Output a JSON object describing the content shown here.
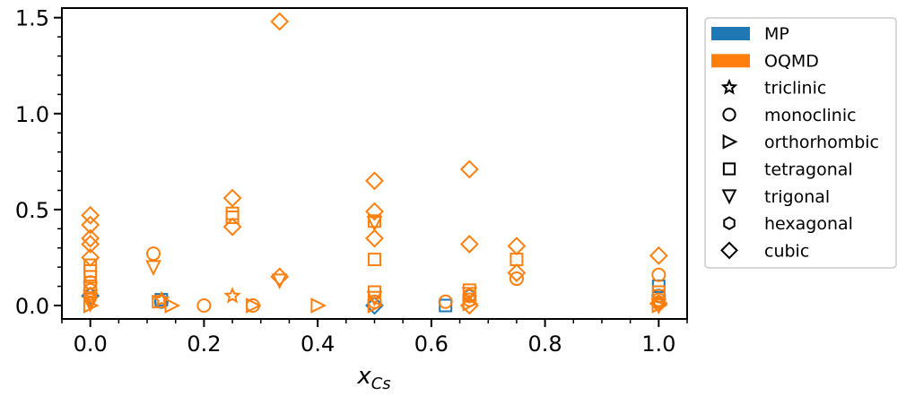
{
  "chart_data": {
    "type": "scatter",
    "title": "",
    "xlabel_main": "x",
    "xlabel_sub": "Cs",
    "ylabel": "",
    "xlim": [
      -0.05,
      1.05
    ],
    "ylim": [
      -0.07,
      1.55
    ],
    "xticks": [
      0.0,
      0.2,
      0.4,
      0.6,
      0.8,
      1.0
    ],
    "xtick_labels": [
      "0.0",
      "0.2",
      "0.4",
      "0.6",
      "0.8",
      "1.0"
    ],
    "yticks": [
      0.0,
      0.5,
      1.0,
      1.5
    ],
    "ytick_labels": [
      "0.0",
      "0.5",
      "1.0",
      "1.5"
    ],
    "grid": false,
    "legend_position": "outside-right",
    "sources": [
      {
        "name": "MP",
        "color": "#1f77b4"
      },
      {
        "name": "OQMD",
        "color": "#ff7f0e"
      }
    ],
    "crystal_systems": [
      {
        "name": "triclinic",
        "marker": "star"
      },
      {
        "name": "monoclinic",
        "marker": "circle"
      },
      {
        "name": "orthorhombic",
        "marker": "triangle-right"
      },
      {
        "name": "tetragonal",
        "marker": "square"
      },
      {
        "name": "trigonal",
        "marker": "triangle-down"
      },
      {
        "name": "hexagonal",
        "marker": "hexagon"
      },
      {
        "name": "cubic",
        "marker": "diamond"
      }
    ],
    "points": [
      {
        "source": "MP",
        "system": "cubic",
        "x": 0.0,
        "y": 0.05
      },
      {
        "source": "MP",
        "system": "square",
        "x": 0.125,
        "y": 0.03
      },
      {
        "source": "MP",
        "system": "monoclinic",
        "x": 0.125,
        "y": 0.02
      },
      {
        "source": "MP",
        "system": "square",
        "x": 0.625,
        "y": 0.0
      },
      {
        "source": "MP",
        "system": "cubic",
        "x": 0.5,
        "y": 0.0
      },
      {
        "source": "MP",
        "system": "square",
        "x": 1.0,
        "y": 0.1
      },
      {
        "source": "MP",
        "system": "monoclinic",
        "x": 1.0,
        "y": 0.05
      },
      {
        "source": "MP",
        "system": "hexagonal",
        "x": 0.667,
        "y": 0.05
      },
      {
        "source": "OQMD",
        "system": "cubic",
        "x": 0.0,
        "y": 0.47
      },
      {
        "source": "OQMD",
        "system": "cubic",
        "x": 0.0,
        "y": 0.42
      },
      {
        "source": "OQMD",
        "system": "cubic",
        "x": 0.0,
        "y": 0.35
      },
      {
        "source": "OQMD",
        "system": "cubic",
        "x": 0.0,
        "y": 0.32
      },
      {
        "source": "OQMD",
        "system": "cubic",
        "x": 0.0,
        "y": 0.25
      },
      {
        "source": "OQMD",
        "system": "square",
        "x": 0.0,
        "y": 0.21
      },
      {
        "source": "OQMD",
        "system": "square",
        "x": 0.0,
        "y": 0.18
      },
      {
        "source": "OQMD",
        "system": "square",
        "x": 0.0,
        "y": 0.15
      },
      {
        "source": "OQMD",
        "system": "monoclinic",
        "x": 0.0,
        "y": 0.12
      },
      {
        "source": "OQMD",
        "system": "square",
        "x": 0.0,
        "y": 0.1
      },
      {
        "source": "OQMD",
        "system": "monoclinic",
        "x": 0.0,
        "y": 0.08
      },
      {
        "source": "OQMD",
        "system": "hexagonal",
        "x": 0.0,
        "y": 0.06
      },
      {
        "source": "OQMD",
        "system": "trigonal",
        "x": 0.0,
        "y": 0.03
      },
      {
        "source": "OQMD",
        "system": "trigonal",
        "x": 0.0,
        "y": 0.01
      },
      {
        "source": "OQMD",
        "system": "orthorhombic",
        "x": 0.0,
        "y": 0.0
      },
      {
        "source": "OQMD",
        "system": "monoclinic",
        "x": 0.111,
        "y": 0.27
      },
      {
        "source": "OQMD",
        "system": "trigonal",
        "x": 0.111,
        "y": 0.2
      },
      {
        "source": "OQMD",
        "system": "square",
        "x": 0.12,
        "y": 0.02
      },
      {
        "source": "OQMD",
        "system": "triclinic",
        "x": 0.125,
        "y": 0.03
      },
      {
        "source": "OQMD",
        "system": "orthorhombic",
        "x": 0.143,
        "y": 0.0
      },
      {
        "source": "OQMD",
        "system": "monoclinic",
        "x": 0.2,
        "y": 0.0
      },
      {
        "source": "OQMD",
        "system": "cubic",
        "x": 0.25,
        "y": 0.56
      },
      {
        "source": "OQMD",
        "system": "square",
        "x": 0.25,
        "y": 0.48
      },
      {
        "source": "OQMD",
        "system": "square",
        "x": 0.25,
        "y": 0.46
      },
      {
        "source": "OQMD",
        "system": "cubic",
        "x": 0.25,
        "y": 0.41
      },
      {
        "source": "OQMD",
        "system": "triclinic",
        "x": 0.25,
        "y": 0.05
      },
      {
        "source": "OQMD",
        "system": "monoclinic",
        "x": 0.286,
        "y": 0.0
      },
      {
        "source": "OQMD",
        "system": "orthorhombic",
        "x": 0.286,
        "y": 0.0
      },
      {
        "source": "OQMD",
        "system": "cubic",
        "x": 0.333,
        "y": 1.48
      },
      {
        "source": "OQMD",
        "system": "cubic",
        "x": 0.333,
        "y": 0.15
      },
      {
        "source": "OQMD",
        "system": "trigonal",
        "x": 0.333,
        "y": 0.13
      },
      {
        "source": "OQMD",
        "system": "orthorhombic",
        "x": 0.4,
        "y": 0.0
      },
      {
        "source": "OQMD",
        "system": "cubic",
        "x": 0.5,
        "y": 0.65
      },
      {
        "source": "OQMD",
        "system": "cubic",
        "x": 0.5,
        "y": 0.49
      },
      {
        "source": "OQMD",
        "system": "square",
        "x": 0.5,
        "y": 0.44
      },
      {
        "source": "OQMD",
        "system": "trigonal",
        "x": 0.5,
        "y": 0.43
      },
      {
        "source": "OQMD",
        "system": "cubic",
        "x": 0.5,
        "y": 0.35
      },
      {
        "source": "OQMD",
        "system": "square",
        "x": 0.5,
        "y": 0.24
      },
      {
        "source": "OQMD",
        "system": "square",
        "x": 0.5,
        "y": 0.07
      },
      {
        "source": "OQMD",
        "system": "trigonal",
        "x": 0.5,
        "y": 0.04
      },
      {
        "source": "OQMD",
        "system": "monoclinic",
        "x": 0.5,
        "y": 0.02
      },
      {
        "source": "OQMD",
        "system": "orthorhombic",
        "x": 0.5,
        "y": 0.0
      },
      {
        "source": "OQMD",
        "system": "monoclinic",
        "x": 0.625,
        "y": 0.02
      },
      {
        "source": "OQMD",
        "system": "cubic",
        "x": 0.667,
        "y": 0.71
      },
      {
        "source": "OQMD",
        "system": "cubic",
        "x": 0.667,
        "y": 0.32
      },
      {
        "source": "OQMD",
        "system": "square",
        "x": 0.667,
        "y": 0.08
      },
      {
        "source": "OQMD",
        "system": "trigonal",
        "x": 0.667,
        "y": 0.06
      },
      {
        "source": "OQMD",
        "system": "monoclinic",
        "x": 0.667,
        "y": 0.05
      },
      {
        "source": "OQMD",
        "system": "monoclinic",
        "x": 0.667,
        "y": 0.03
      },
      {
        "source": "OQMD",
        "system": "orthorhombic",
        "x": 0.667,
        "y": 0.01
      },
      {
        "source": "OQMD",
        "system": "cubic",
        "x": 0.667,
        "y": 0.0
      },
      {
        "source": "OQMD",
        "system": "cubic",
        "x": 0.75,
        "y": 0.31
      },
      {
        "source": "OQMD",
        "system": "square",
        "x": 0.75,
        "y": 0.24
      },
      {
        "source": "OQMD",
        "system": "cubic",
        "x": 0.75,
        "y": 0.17
      },
      {
        "source": "OQMD",
        "system": "monoclinic",
        "x": 0.75,
        "y": 0.14
      },
      {
        "source": "OQMD",
        "system": "cubic",
        "x": 1.0,
        "y": 0.26
      },
      {
        "source": "OQMD",
        "system": "monoclinic",
        "x": 1.0,
        "y": 0.16
      },
      {
        "source": "OQMD",
        "system": "square",
        "x": 1.0,
        "y": 0.07
      },
      {
        "source": "OQMD",
        "system": "square",
        "x": 1.0,
        "y": 0.05
      },
      {
        "source": "OQMD",
        "system": "monoclinic",
        "x": 1.0,
        "y": 0.03
      },
      {
        "source": "OQMD",
        "system": "hexagonal",
        "x": 1.0,
        "y": 0.02
      },
      {
        "source": "OQMD",
        "system": "cubic",
        "x": 1.0,
        "y": 0.01
      },
      {
        "source": "OQMD",
        "system": "orthorhombic",
        "x": 1.0,
        "y": 0.0
      },
      {
        "source": "OQMD",
        "system": "trigonal",
        "x": 1.0,
        "y": 0.0
      }
    ]
  }
}
